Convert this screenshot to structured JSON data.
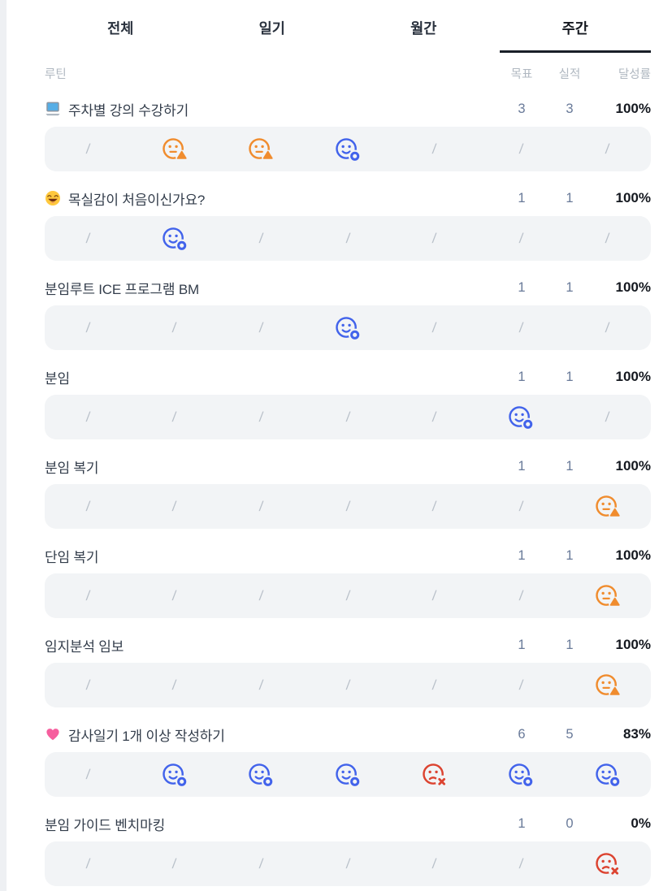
{
  "tabs": [
    {
      "name": "all",
      "label": "전체",
      "active": false
    },
    {
      "name": "daily",
      "label": "일기",
      "active": false
    },
    {
      "name": "monthly",
      "label": "월간",
      "active": false
    },
    {
      "name": "weekly",
      "label": "주간",
      "active": true
    }
  ],
  "table_header": {
    "routine": "루틴",
    "goal": "목표",
    "actual": "실적",
    "rate": "달성률"
  },
  "slash_symbol": "/",
  "colors": {
    "success": "#4263eb",
    "warning": "#f08c2e",
    "fail": "#dc4330",
    "band_bg": "#f2f4f6",
    "active_tab_underline": "#191f28",
    "number_text": "#697a99",
    "rate_text": "#14181f"
  },
  "icon_legend": {
    "success": "smiley-done-icon",
    "warning": "smiley-warning-icon",
    "fail": "smiley-missed-icon",
    "none": "empty-slash"
  },
  "rows": [
    {
      "icon": "laptop-emoji",
      "title": "주차별 강의 수강하기",
      "goal": "3",
      "actual": "3",
      "rate": "100%",
      "week": [
        "none",
        "warning",
        "warning",
        "success",
        "none",
        "none",
        "none"
      ]
    },
    {
      "icon": "grin-emoji",
      "title": "목실감이 처음이신가요?",
      "goal": "1",
      "actual": "1",
      "rate": "100%",
      "week": [
        "none",
        "success",
        "none",
        "none",
        "none",
        "none",
        "none"
      ]
    },
    {
      "icon": null,
      "title": "분임루트 ICE 프로그램 BM",
      "goal": "1",
      "actual": "1",
      "rate": "100%",
      "week": [
        "none",
        "none",
        "none",
        "success",
        "none",
        "none",
        "none"
      ]
    },
    {
      "icon": null,
      "title": "분임",
      "goal": "1",
      "actual": "1",
      "rate": "100%",
      "week": [
        "none",
        "none",
        "none",
        "none",
        "none",
        "success",
        "none"
      ]
    },
    {
      "icon": null,
      "title": "분임 복기",
      "goal": "1",
      "actual": "1",
      "rate": "100%",
      "week": [
        "none",
        "none",
        "none",
        "none",
        "none",
        "none",
        "warning"
      ]
    },
    {
      "icon": null,
      "title": "단임 복기",
      "goal": "1",
      "actual": "1",
      "rate": "100%",
      "week": [
        "none",
        "none",
        "none",
        "none",
        "none",
        "none",
        "warning"
      ]
    },
    {
      "icon": null,
      "title": "임지분석 임보",
      "goal": "1",
      "actual": "1",
      "rate": "100%",
      "week": [
        "none",
        "none",
        "none",
        "none",
        "none",
        "none",
        "warning"
      ]
    },
    {
      "icon": "heart-emoji",
      "title": "감사일기 1개 이상 작성하기",
      "goal": "6",
      "actual": "5",
      "rate": "83%",
      "week": [
        "none",
        "success",
        "success",
        "success",
        "fail",
        "success",
        "success"
      ]
    },
    {
      "icon": null,
      "title": "분임 가이드 벤치마킹",
      "goal": "1",
      "actual": "0",
      "rate": "0%",
      "week": [
        "none",
        "none",
        "none",
        "none",
        "none",
        "none",
        "fail"
      ]
    }
  ]
}
